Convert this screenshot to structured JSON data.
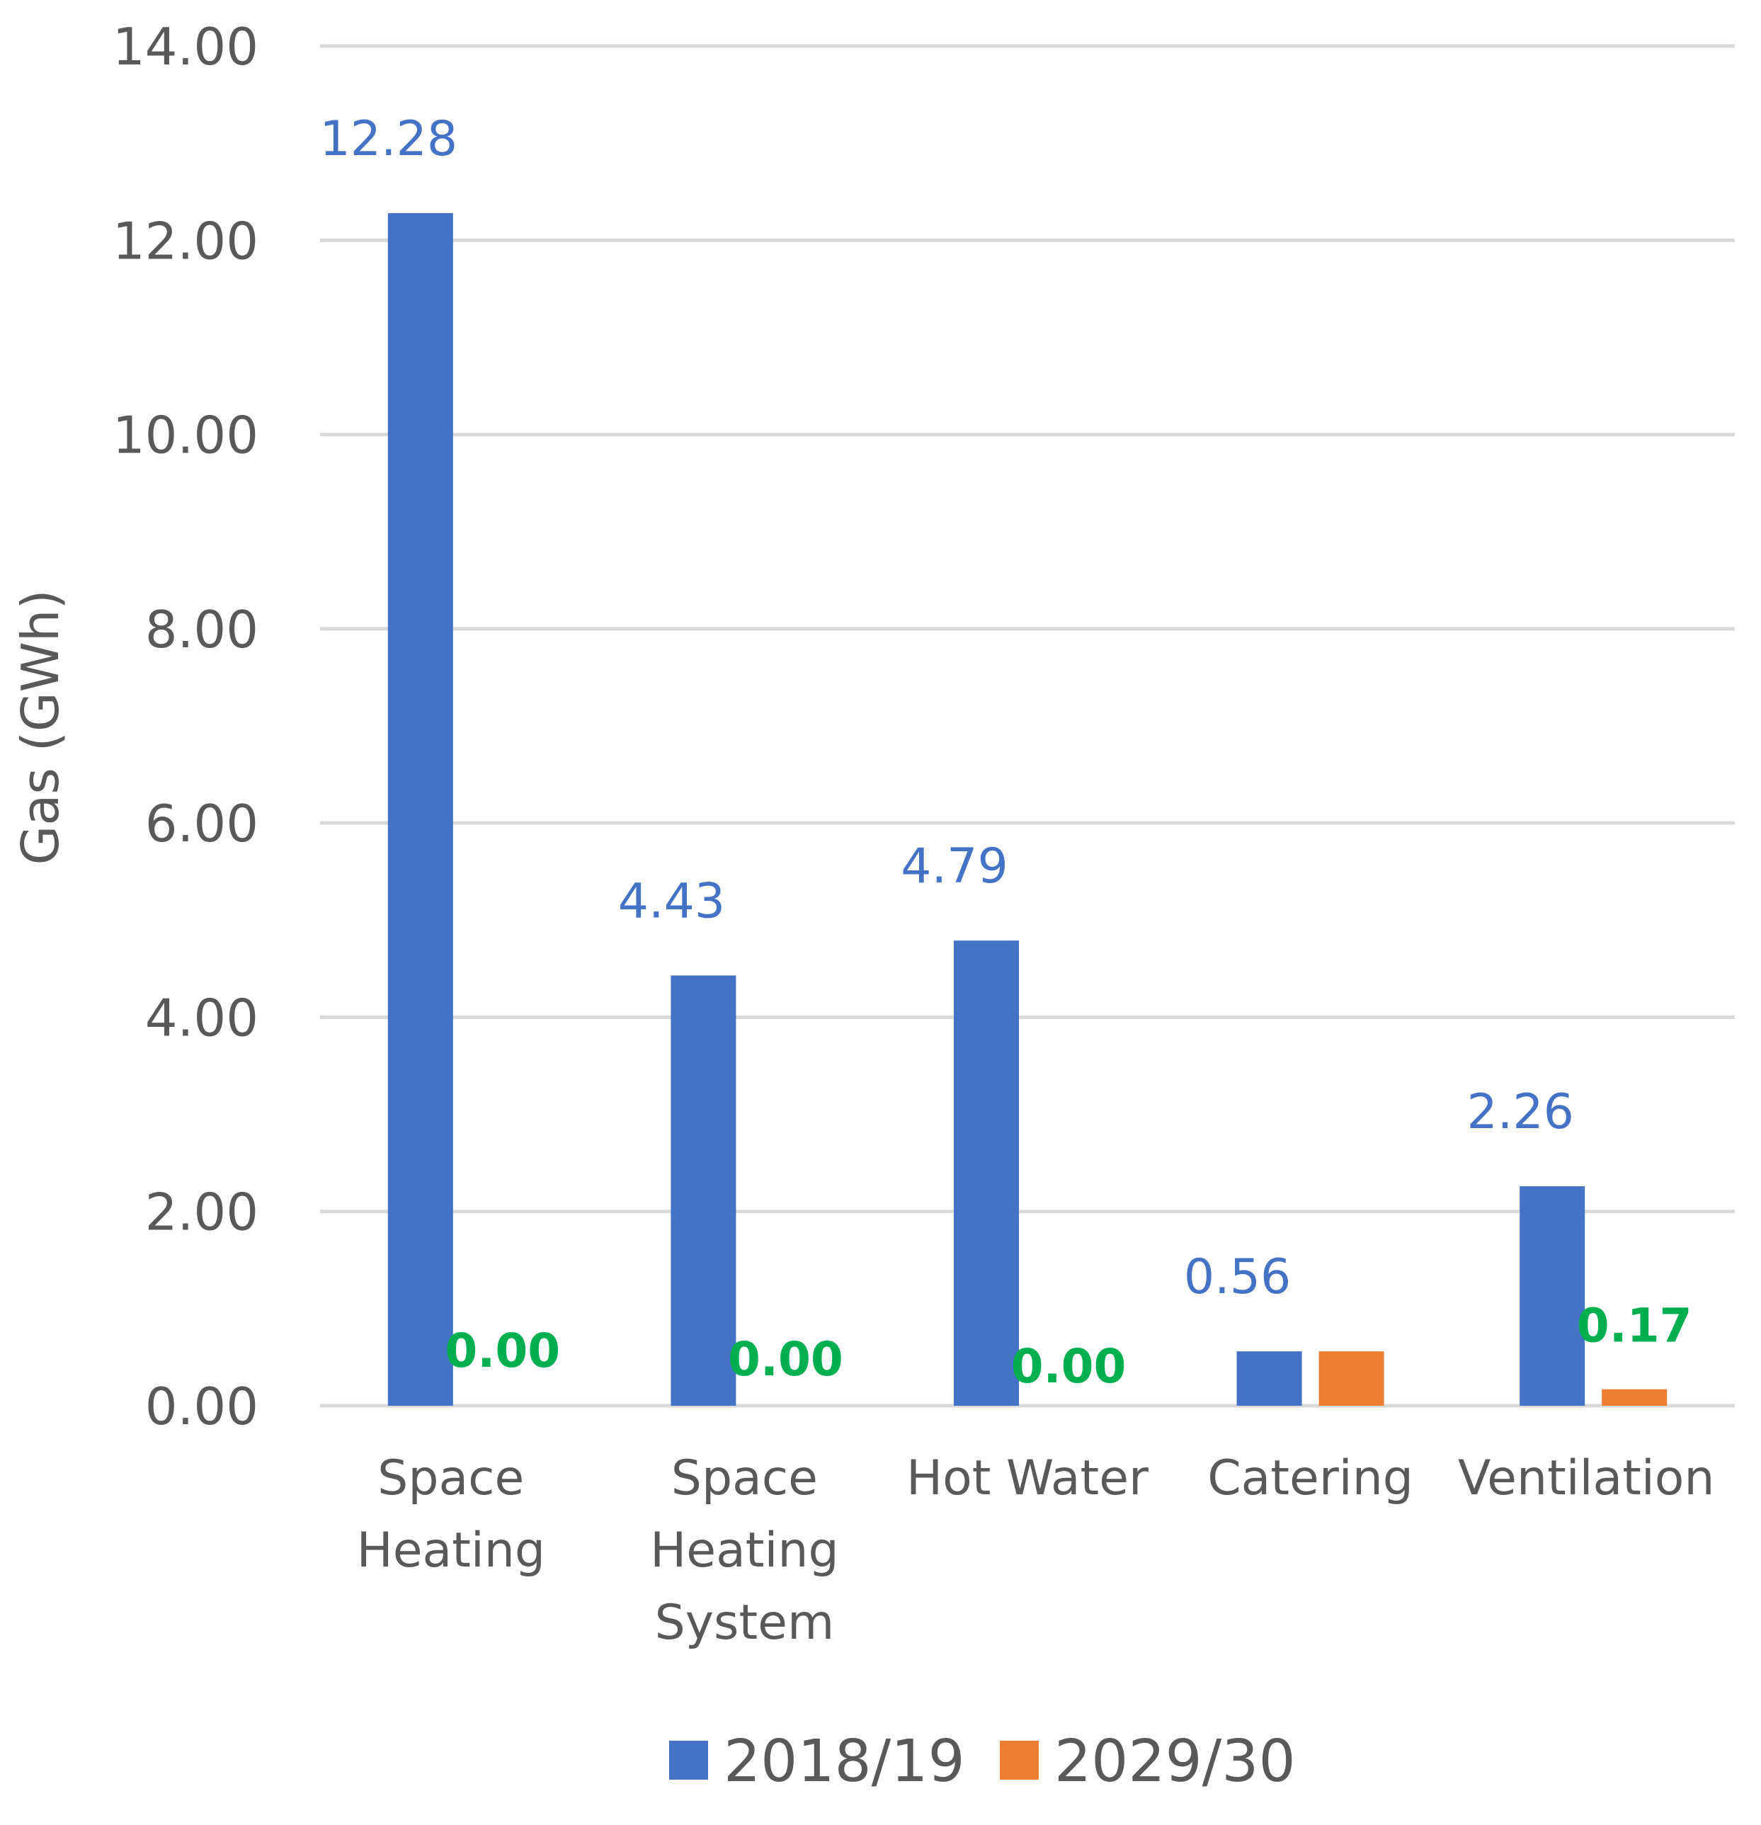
{
  "chart_data": {
    "type": "bar",
    "title": "",
    "xlabel": "",
    "ylabel": "Gas (GWh)",
    "ylim": [
      0,
      14
    ],
    "yticks": [
      "0.00",
      "2.00",
      "4.00",
      "6.00",
      "8.00",
      "10.00",
      "12.00",
      "14.00"
    ],
    "ytick_values": [
      0,
      2,
      4,
      6,
      8,
      10,
      12,
      14
    ],
    "grid": true,
    "legend_position": "bottom-center",
    "categories": [
      [
        "Space",
        "Heating"
      ],
      [
        "Space",
        "Heating",
        "System"
      ],
      [
        "Hot Water"
      ],
      [
        "Catering"
      ],
      [
        "Ventilation"
      ]
    ],
    "series": [
      {
        "name": "2018/19",
        "color": "#4472c4",
        "values": [
          12.28,
          4.43,
          4.79,
          0.56,
          2.26
        ],
        "labels": [
          "12.28",
          "4.43",
          "4.79",
          "0.56",
          "2.26"
        ]
      },
      {
        "name": "2029/30",
        "color": "#ed7d31",
        "label_color": "#00b050",
        "values": [
          0.0,
          0.0,
          0.0,
          0.56,
          0.17
        ],
        "labels": [
          "0.00",
          "0.00",
          "0.00",
          "",
          "0.17"
        ]
      }
    ]
  }
}
